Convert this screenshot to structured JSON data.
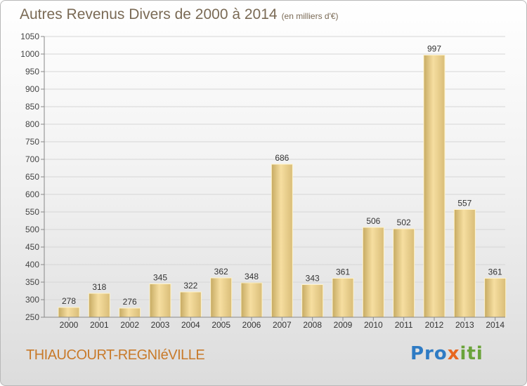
{
  "header": {
    "title": "Autres Revenus Divers de 2000 à 2014",
    "subtitle": "(en milliers d'€)"
  },
  "footer": {
    "city": "THIAUCOURT-REGNIéVILLE",
    "logo": {
      "part1": "Pro",
      "part2": "x",
      "part3": "iti"
    }
  },
  "colors": {
    "title": "#7a6a55",
    "city": "#c87a2a",
    "bar_light": "#f6dea0",
    "bar_dark": "#c6aa62"
  },
  "chart_data": {
    "type": "bar",
    "title": "Autres Revenus Divers de 2000 à 2014",
    "subtitle": "(en milliers d'€)",
    "categories": [
      "2000",
      "2001",
      "2002",
      "2003",
      "2004",
      "2005",
      "2006",
      "2007",
      "2008",
      "2009",
      "2010",
      "2011",
      "2012",
      "2013",
      "2014"
    ],
    "values": [
      278,
      318,
      276,
      345,
      322,
      362,
      348,
      686,
      343,
      361,
      506,
      502,
      997,
      557,
      361
    ],
    "ylim": [
      250,
      1050
    ],
    "yticks": [
      250,
      300,
      350,
      400,
      450,
      500,
      550,
      600,
      650,
      700,
      750,
      800,
      850,
      900,
      950,
      1000,
      1050
    ],
    "grid": true,
    "xlabel": "",
    "ylabel": ""
  }
}
